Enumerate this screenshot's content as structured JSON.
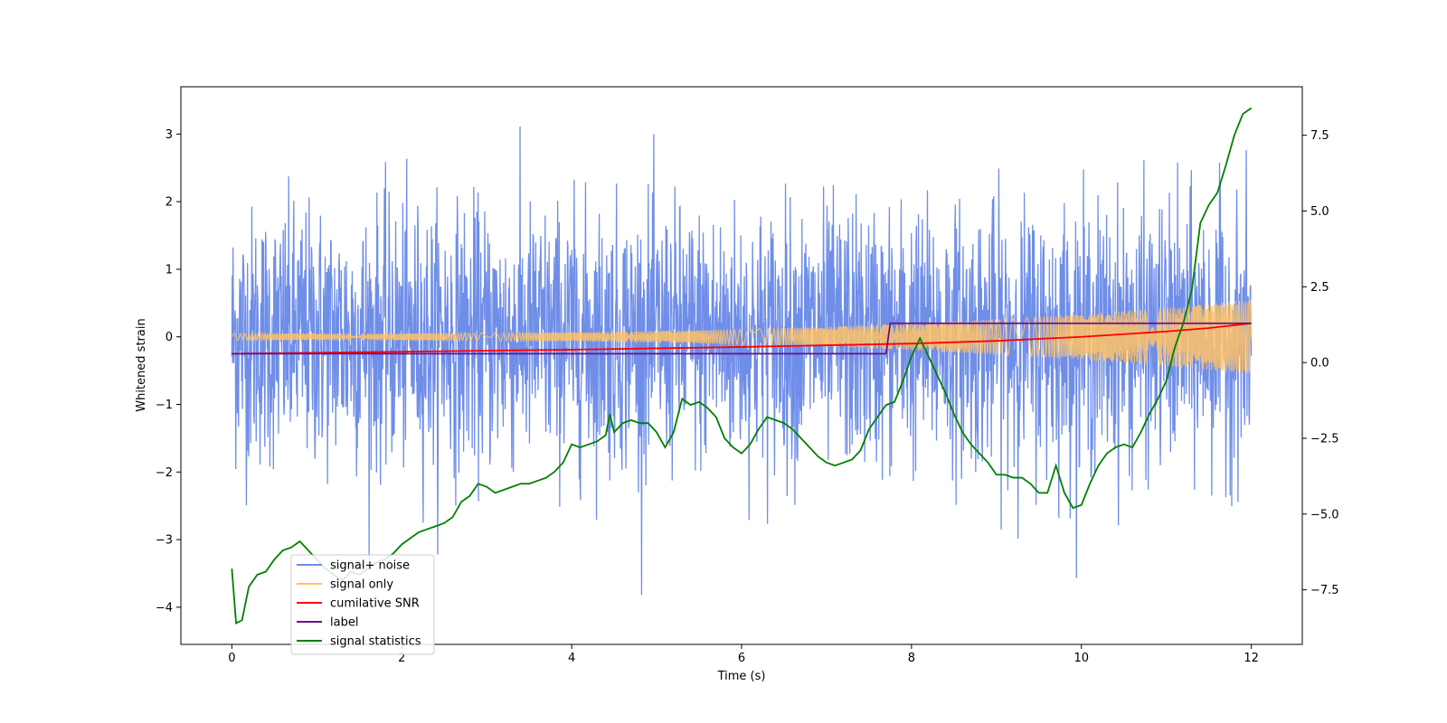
{
  "chart_data": {
    "type": "line",
    "title": "",
    "xlabel": "Time (s)",
    "ylabel": "Whitened strain",
    "y2label": "",
    "xlim": [
      -0.6,
      12.6
    ],
    "ylim": [
      -4.55,
      3.7
    ],
    "y2lim": [
      -9.3,
      9.1
    ],
    "x_ticks": [
      0,
      2,
      4,
      6,
      8,
      10,
      12
    ],
    "y_ticks": [
      -4,
      -3,
      -2,
      -1,
      0,
      1,
      2,
      3
    ],
    "y2_ticks": [
      -7.5,
      -5.0,
      -2.5,
      0.0,
      2.5,
      5.0,
      7.5
    ],
    "x_tick_labels": [
      "0",
      "2",
      "4",
      "6",
      "8",
      "10",
      "12"
    ],
    "y_tick_labels": [
      "−4",
      "−3",
      "−2",
      "−1",
      "0",
      "1",
      "2",
      "3"
    ],
    "y2_tick_labels": [
      "−7.5",
      "−5.0",
      "−2.5",
      "0.0",
      "2.5",
      "5.0",
      "7.5"
    ],
    "grid": false,
    "legend_position": "lower-left",
    "series": [
      {
        "name": "signal+ noise",
        "color": "#6f8ee8",
        "axis": "left",
        "x_range": [
          0,
          12
        ],
        "approx_band": [
          -1.6,
          1.6
        ],
        "approx_extremes": [
          -4.2,
          3.55
        ],
        "description_values": {
          "peak_max": 3.55,
          "peak_min": -4.15
        }
      },
      {
        "name": "signal only",
        "color": "#ffc266",
        "axis": "left",
        "x_range": [
          0,
          12
        ],
        "amplitude_start": 0.05,
        "amplitude_end": 0.55
      },
      {
        "name": "cumilative SNR",
        "color": "#ff0000",
        "axis": "left",
        "x": [
          0,
          2,
          4,
          6,
          8,
          9,
          10,
          10.5,
          11,
          11.5,
          12
        ],
        "y": [
          -0.25,
          -0.22,
          -0.19,
          -0.15,
          -0.1,
          -0.06,
          0.0,
          0.04,
          0.08,
          0.13,
          0.2
        ]
      },
      {
        "name": "label",
        "color": "#6a0f8e",
        "axis": "left",
        "x": [
          0,
          7.7,
          7.75,
          12
        ],
        "y": [
          -0.25,
          -0.25,
          0.2,
          0.2
        ]
      },
      {
        "name": "signal statistics",
        "color": "#008000",
        "axis": "right",
        "x": [
          0,
          0.05,
          0.12,
          0.2,
          0.3,
          0.4,
          0.5,
          0.6,
          0.7,
          0.8,
          0.9,
          1.0,
          1.1,
          1.2,
          1.3,
          1.4,
          1.5,
          1.6,
          1.7,
          1.8,
          1.9,
          2.0,
          2.1,
          2.2,
          2.3,
          2.4,
          2.5,
          2.6,
          2.7,
          2.8,
          2.9,
          3.0,
          3.1,
          3.2,
          3.3,
          3.4,
          3.5,
          3.6,
          3.7,
          3.8,
          3.9,
          4.0,
          4.1,
          4.2,
          4.3,
          4.4,
          4.45,
          4.5,
          4.6,
          4.7,
          4.8,
          4.9,
          5.0,
          5.1,
          5.2,
          5.3,
          5.4,
          5.5,
          5.6,
          5.7,
          5.8,
          5.9,
          6.0,
          6.1,
          6.2,
          6.3,
          6.4,
          6.5,
          6.6,
          6.7,
          6.8,
          6.9,
          7.0,
          7.1,
          7.2,
          7.3,
          7.4,
          7.5,
          7.6,
          7.7,
          7.8,
          7.9,
          8.0,
          8.1,
          8.2,
          8.3,
          8.4,
          8.5,
          8.6,
          8.7,
          8.8,
          8.9,
          9.0,
          9.1,
          9.2,
          9.3,
          9.4,
          9.5,
          9.6,
          9.7,
          9.8,
          9.9,
          10.0,
          10.1,
          10.2,
          10.3,
          10.4,
          10.5,
          10.6,
          10.7,
          10.8,
          10.9,
          11.0,
          11.1,
          11.2,
          11.3,
          11.4,
          11.5,
          11.6,
          11.7,
          11.8,
          11.9,
          12.0
        ],
        "y": [
          -6.8,
          -8.6,
          -8.5,
          -7.4,
          -7.0,
          -6.9,
          -6.5,
          -6.2,
          -6.1,
          -5.9,
          -6.2,
          -6.5,
          -6.8,
          -7.0,
          -7.2,
          -6.9,
          -7.0,
          -6.8,
          -6.6,
          -6.5,
          -6.3,
          -6.0,
          -5.8,
          -5.6,
          -5.5,
          -5.4,
          -5.3,
          -5.1,
          -4.6,
          -4.4,
          -4.0,
          -4.1,
          -4.3,
          -4.2,
          -4.1,
          -4.0,
          -4.0,
          -3.9,
          -3.8,
          -3.6,
          -3.3,
          -2.7,
          -2.8,
          -2.7,
          -2.6,
          -2.4,
          -1.7,
          -2.3,
          -2.0,
          -1.9,
          -2.0,
          -2.0,
          -2.3,
          -2.8,
          -2.3,
          -1.2,
          -1.4,
          -1.3,
          -1.5,
          -1.8,
          -2.5,
          -2.8,
          -3.0,
          -2.7,
          -2.2,
          -1.8,
          -1.9,
          -2.0,
          -2.2,
          -2.5,
          -2.8,
          -3.1,
          -3.3,
          -3.4,
          -3.3,
          -3.2,
          -2.9,
          -2.2,
          -1.8,
          -1.4,
          -1.3,
          -0.6,
          0.2,
          0.8,
          0.2,
          -0.4,
          -1.0,
          -1.7,
          -2.3,
          -2.7,
          -3.0,
          -3.3,
          -3.7,
          -3.7,
          -3.8,
          -3.8,
          -4.0,
          -4.3,
          -4.3,
          -3.4,
          -4.3,
          -4.8,
          -4.7,
          -4.0,
          -3.4,
          -3.0,
          -2.8,
          -2.7,
          -2.8,
          -2.3,
          -1.7,
          -1.2,
          -0.6,
          0.5,
          1.3,
          2.4,
          4.6,
          5.2,
          5.6,
          6.5,
          7.5,
          8.2,
          8.4
        ]
      }
    ],
    "legend": [
      {
        "label": "signal+ noise",
        "color": "#6f8ee8"
      },
      {
        "label": "signal only",
        "color": "#ffc266"
      },
      {
        "label": "cumilative SNR",
        "color": "#ff0000"
      },
      {
        "label": "label",
        "color": "#6a0f8e"
      },
      {
        "label": "signal statistics",
        "color": "#008000"
      }
    ]
  }
}
